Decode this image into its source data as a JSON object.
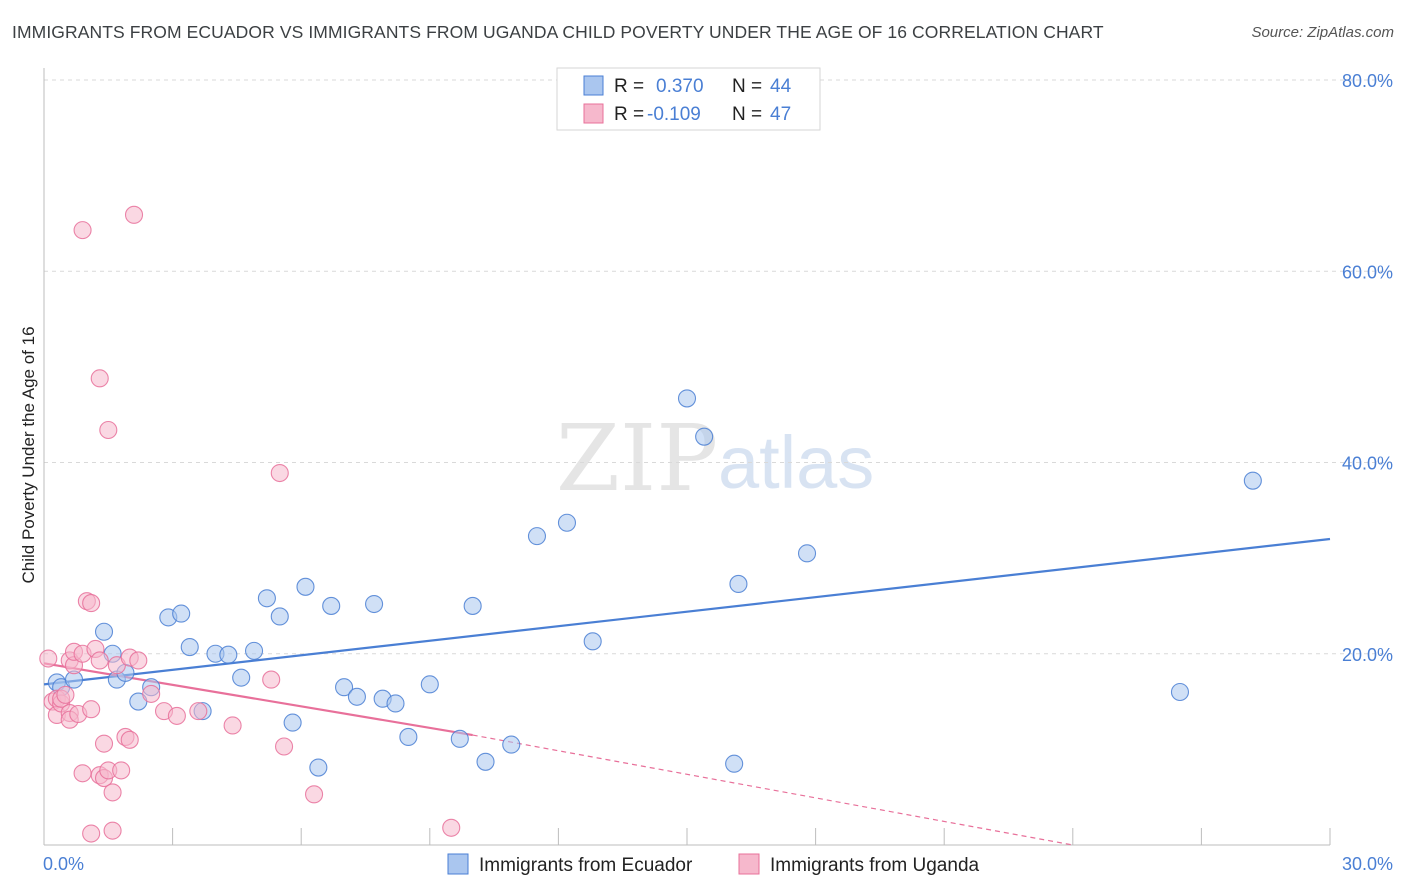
{
  "header": {
    "title": "IMMIGRANTS FROM ECUADOR VS IMMIGRANTS FROM UGANDA CHILD POVERTY UNDER THE AGE OF 16 CORRELATION CHART",
    "source": "Source: ZipAtlas.com"
  },
  "watermark": {
    "zip": "ZIP",
    "atlas": "atlas"
  },
  "colors": {
    "ecuador": "#4a7fd4",
    "ecuador_fill": "#aac6ef",
    "uganda": "#e8709a",
    "uganda_fill": "#f6b8cc",
    "grid": "#d9d9d9",
    "tick_text": "#4a7fd4"
  },
  "legend": {
    "rows": [
      {
        "r_label": "R =",
        "r_value": "0.370",
        "n_label": "N =",
        "n_value": "44"
      },
      {
        "r_label": "R =",
        "r_value": "-0.109",
        "n_label": "N =",
        "n_value": "47"
      }
    ]
  },
  "chart_data": {
    "type": "scatter",
    "title": "IMMIGRANTS FROM ECUADOR VS IMMIGRANTS FROM UGANDA CHILD POVERTY UNDER THE AGE OF 16 CORRELATION CHART",
    "xlabel": "",
    "ylabel": "Child Poverty Under the Age of 16",
    "xlim": [
      0,
      30
    ],
    "ylim": [
      0,
      80
    ],
    "x_tick_labels": [
      "0.0%",
      "30.0%"
    ],
    "y_ticks": [
      20,
      40,
      60,
      80
    ],
    "y_tick_labels": [
      "20.0%",
      "40.0%",
      "60.0%",
      "80.0%"
    ],
    "legend_position": "bottom-center",
    "series": [
      {
        "name": "Immigrants from Ecuador",
        "R": 0.37,
        "N": 44,
        "trend": {
          "x": [
            0,
            30
          ],
          "y": [
            16.8,
            32.0
          ],
          "dashed_beyond": null
        },
        "points": [
          [
            0.3,
            17.0
          ],
          [
            0.4,
            16.5
          ],
          [
            0.7,
            17.3
          ],
          [
            1.4,
            22.3
          ],
          [
            1.6,
            20.0
          ],
          [
            1.7,
            17.3
          ],
          [
            1.9,
            18.0
          ],
          [
            2.2,
            15.0
          ],
          [
            2.5,
            16.5
          ],
          [
            2.9,
            23.8
          ],
          [
            3.2,
            24.2
          ],
          [
            3.4,
            20.7
          ],
          [
            3.7,
            14.0
          ],
          [
            4.0,
            20.0
          ],
          [
            4.3,
            19.9
          ],
          [
            4.6,
            17.5
          ],
          [
            4.9,
            20.3
          ],
          [
            5.2,
            25.8
          ],
          [
            5.5,
            23.9
          ],
          [
            5.8,
            12.8
          ],
          [
            6.1,
            27.0
          ],
          [
            6.4,
            8.1
          ],
          [
            6.7,
            25.0
          ],
          [
            7.0,
            16.5
          ],
          [
            7.3,
            15.5
          ],
          [
            7.7,
            25.2
          ],
          [
            7.9,
            15.3
          ],
          [
            8.2,
            14.8
          ],
          [
            8.5,
            11.3
          ],
          [
            9.0,
            16.8
          ],
          [
            9.7,
            11.1
          ],
          [
            10.0,
            25.0
          ],
          [
            10.3,
            8.7
          ],
          [
            10.9,
            10.5
          ],
          [
            11.5,
            32.3
          ],
          [
            12.2,
            33.7
          ],
          [
            12.8,
            21.3
          ],
          [
            15.0,
            46.7
          ],
          [
            15.4,
            42.7
          ],
          [
            16.1,
            8.5
          ],
          [
            16.2,
            27.3
          ],
          [
            17.8,
            30.5
          ],
          [
            26.5,
            16.0
          ],
          [
            28.2,
            38.1
          ]
        ]
      },
      {
        "name": "Immigrants from Uganda",
        "R": -0.109,
        "N": 47,
        "trend": {
          "x": [
            0,
            10.0
          ],
          "y": [
            19.0,
            11.5
          ],
          "dashed_to": [
            24.0,
            0.0
          ]
        },
        "points": [
          [
            0.1,
            19.5
          ],
          [
            0.2,
            15.0
          ],
          [
            0.3,
            15.3
          ],
          [
            0.3,
            13.6
          ],
          [
            0.4,
            14.8
          ],
          [
            0.4,
            15.3
          ],
          [
            0.5,
            15.7
          ],
          [
            0.6,
            13.8
          ],
          [
            0.6,
            13.1
          ],
          [
            0.6,
            19.3
          ],
          [
            0.7,
            18.8
          ],
          [
            0.7,
            20.2
          ],
          [
            0.8,
            13.7
          ],
          [
            0.9,
            20.0
          ],
          [
            0.9,
            7.5
          ],
          [
            0.9,
            64.3
          ],
          [
            1.0,
            25.5
          ],
          [
            1.1,
            25.3
          ],
          [
            1.1,
            1.2
          ],
          [
            1.1,
            14.2
          ],
          [
            1.2,
            20.5
          ],
          [
            1.3,
            7.3
          ],
          [
            1.3,
            19.3
          ],
          [
            1.3,
            48.8
          ],
          [
            1.4,
            10.6
          ],
          [
            1.4,
            7.0
          ],
          [
            1.5,
            7.8
          ],
          [
            1.5,
            43.4
          ],
          [
            1.6,
            1.5
          ],
          [
            1.6,
            5.5
          ],
          [
            1.7,
            18.8
          ],
          [
            1.8,
            7.8
          ],
          [
            1.9,
            11.3
          ],
          [
            2.0,
            19.6
          ],
          [
            2.1,
            65.9
          ],
          [
            2.2,
            19.3
          ],
          [
            2.5,
            15.8
          ],
          [
            2.8,
            14.0
          ],
          [
            3.1,
            13.5
          ],
          [
            3.6,
            14.0
          ],
          [
            4.4,
            12.5
          ],
          [
            5.3,
            17.3
          ],
          [
            5.5,
            38.9
          ],
          [
            5.6,
            10.3
          ],
          [
            6.3,
            5.3
          ],
          [
            9.5,
            1.8
          ],
          [
            2.0,
            11.0
          ]
        ]
      }
    ]
  },
  "bottom_legend": {
    "items": [
      {
        "label": "Immigrants from Ecuador"
      },
      {
        "label": "Immigrants from Uganda"
      }
    ]
  }
}
